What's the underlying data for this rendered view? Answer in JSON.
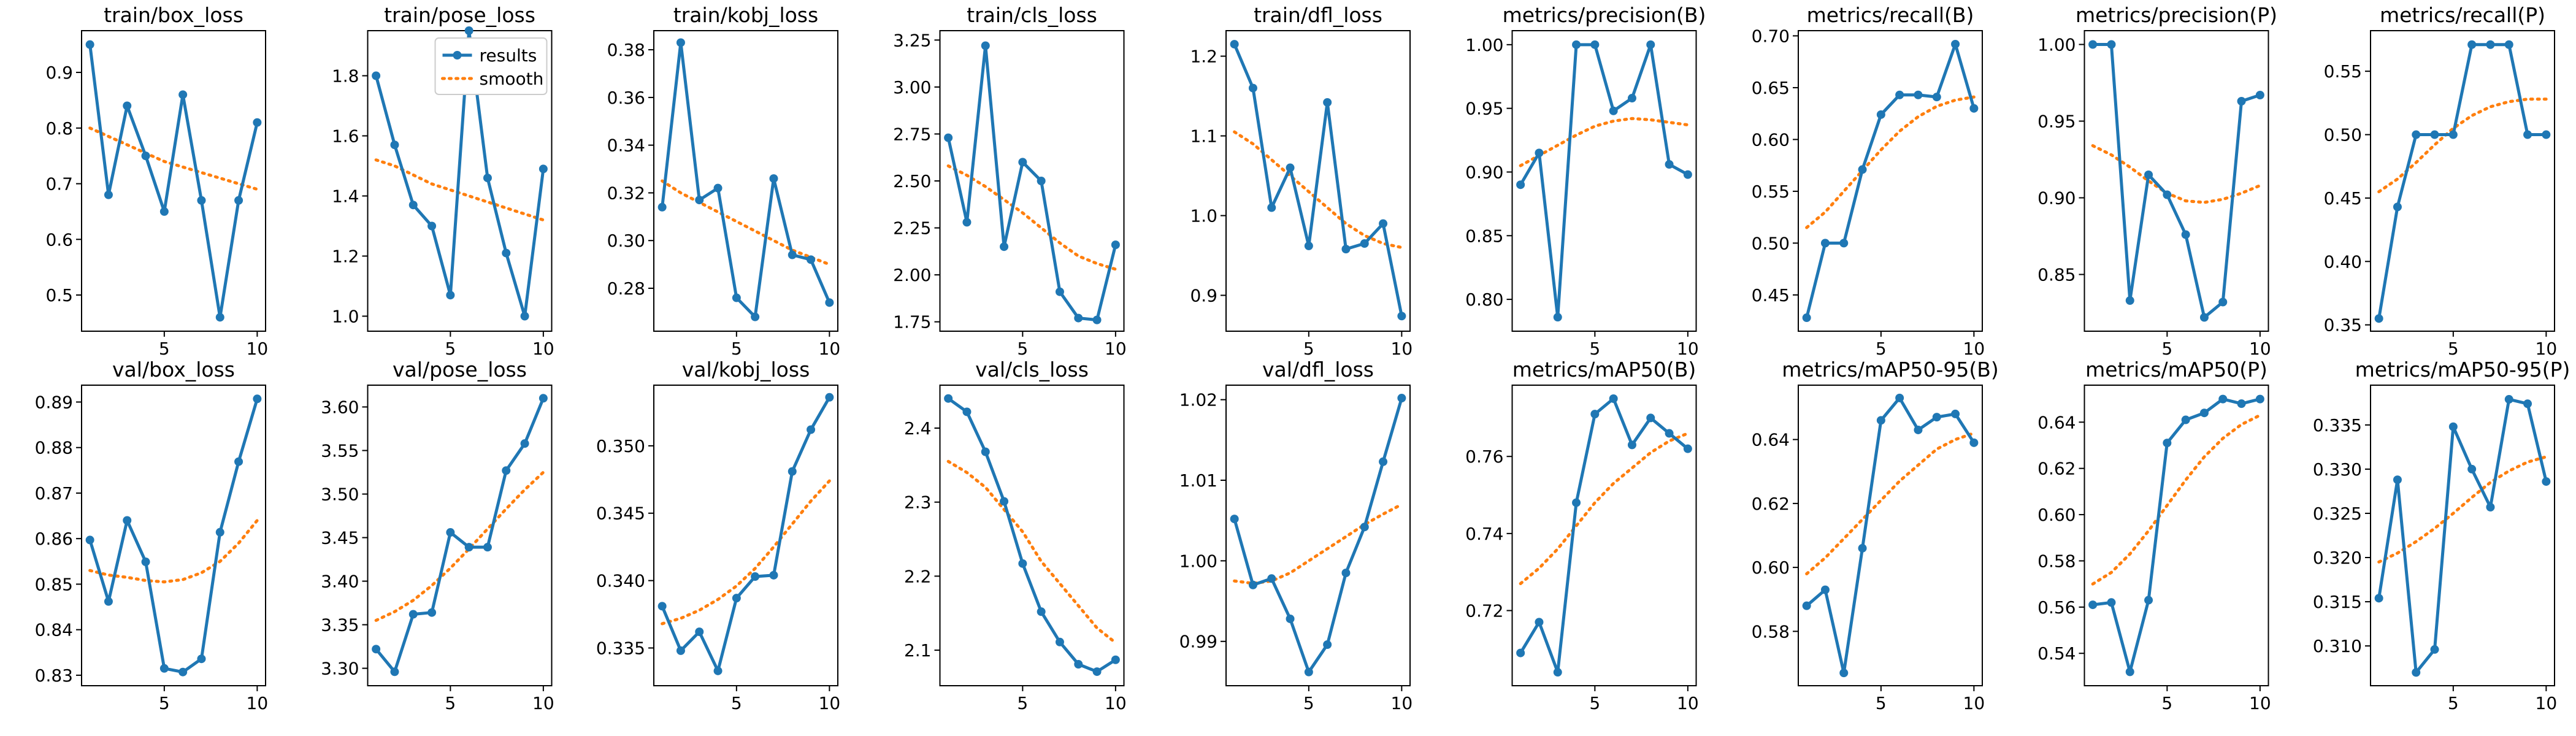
{
  "colors": {
    "results": "#1f77b4",
    "smooth": "#ff7f0e"
  },
  "legend": {
    "results": "results",
    "smooth": "smooth",
    "placement": "upper-right of train/pose_loss panel"
  },
  "chart_data": [
    {
      "type": "line",
      "title": "train/box_loss",
      "x": [
        1,
        2,
        3,
        4,
        5,
        6,
        7,
        8,
        9,
        10
      ],
      "series": [
        {
          "name": "results",
          "values": [
            0.95,
            0.68,
            0.84,
            0.75,
            0.65,
            0.86,
            0.67,
            0.46,
            0.67,
            0.81
          ]
        },
        {
          "name": "smooth",
          "values": [
            0.8,
            0.785,
            0.77,
            0.755,
            0.74,
            0.73,
            0.72,
            0.71,
            0.7,
            0.69
          ]
        }
      ],
      "xticks": [
        5,
        10
      ],
      "yticks": [
        0.5,
        0.6,
        0.7,
        0.8,
        0.9
      ],
      "xlim": [
        0.55,
        10.45
      ],
      "ylim": [
        0.435,
        0.975
      ]
    },
    {
      "type": "line",
      "title": "train/pose_loss",
      "x": [
        1,
        2,
        3,
        4,
        5,
        6,
        7,
        8,
        9,
        10
      ],
      "series": [
        {
          "name": "results",
          "values": [
            1.8,
            1.57,
            1.37,
            1.3,
            1.07,
            1.95,
            1.46,
            1.21,
            1.0,
            1.49
          ]
        },
        {
          "name": "smooth",
          "values": [
            1.52,
            1.5,
            1.47,
            1.44,
            1.42,
            1.4,
            1.38,
            1.36,
            1.34,
            1.32
          ]
        }
      ],
      "xticks": [
        5,
        10
      ],
      "yticks": [
        1.0,
        1.2,
        1.4,
        1.6,
        1.8
      ],
      "xlim": [
        0.55,
        10.45
      ],
      "ylim": [
        0.95,
        1.95
      ],
      "legend": true
    },
    {
      "type": "line",
      "title": "train/kobj_loss",
      "x": [
        1,
        2,
        3,
        4,
        5,
        6,
        7,
        8,
        9,
        10
      ],
      "series": [
        {
          "name": "results",
          "values": [
            0.314,
            0.383,
            0.317,
            0.322,
            0.276,
            0.268,
            0.326,
            0.294,
            0.292,
            0.274
          ]
        },
        {
          "name": "smooth",
          "values": [
            0.325,
            0.32,
            0.316,
            0.312,
            0.308,
            0.304,
            0.3,
            0.296,
            0.293,
            0.29
          ]
        }
      ],
      "xticks": [
        5,
        10
      ],
      "yticks": [
        0.28,
        0.3,
        0.32,
        0.34,
        0.36,
        0.38
      ],
      "xlim": [
        0.55,
        10.45
      ],
      "ylim": [
        0.262,
        0.388
      ]
    },
    {
      "type": "line",
      "title": "train/cls_loss",
      "x": [
        1,
        2,
        3,
        4,
        5,
        6,
        7,
        8,
        9,
        10
      ],
      "series": [
        {
          "name": "results",
          "values": [
            2.73,
            2.28,
            3.22,
            2.15,
            2.6,
            2.5,
            1.91,
            1.77,
            1.76,
            2.16
          ]
        },
        {
          "name": "smooth",
          "values": [
            2.58,
            2.53,
            2.47,
            2.4,
            2.33,
            2.25,
            2.17,
            2.1,
            2.06,
            2.03
          ]
        }
      ],
      "xticks": [
        5,
        10
      ],
      "yticks": [
        1.75,
        2.0,
        2.25,
        2.5,
        2.75,
        3.0,
        3.25
      ],
      "xlim": [
        0.55,
        10.45
      ],
      "ylim": [
        1.7,
        3.3
      ]
    },
    {
      "type": "line",
      "title": "train/dfl_loss",
      "x": [
        1,
        2,
        3,
        4,
        5,
        6,
        7,
        8,
        9,
        10
      ],
      "series": [
        {
          "name": "results",
          "values": [
            1.215,
            1.16,
            1.01,
            1.06,
            0.962,
            1.142,
            0.958,
            0.965,
            0.99,
            0.874
          ]
        },
        {
          "name": "smooth",
          "values": [
            1.105,
            1.09,
            1.07,
            1.05,
            1.03,
            1.01,
            0.99,
            0.975,
            0.965,
            0.96
          ]
        }
      ],
      "xticks": [
        5,
        10
      ],
      "yticks": [
        0.9,
        1.0,
        1.1,
        1.2
      ],
      "xlim": [
        0.55,
        10.45
      ],
      "ylim": [
        0.855,
        1.232
      ]
    },
    {
      "type": "line",
      "title": "metrics/precision(B)",
      "x": [
        1,
        2,
        3,
        4,
        5,
        6,
        7,
        8,
        9,
        10
      ],
      "series": [
        {
          "name": "results",
          "values": [
            0.89,
            0.915,
            0.786,
            1.0,
            1.0,
            0.948,
            0.958,
            1.0,
            0.906,
            0.898
          ]
        },
        {
          "name": "smooth",
          "values": [
            0.905,
            0.913,
            0.921,
            0.929,
            0.936,
            0.94,
            0.942,
            0.941,
            0.939,
            0.937
          ]
        }
      ],
      "xticks": [
        5,
        10
      ],
      "yticks": [
        0.8,
        0.85,
        0.9,
        0.95,
        1.0
      ],
      "xlim": [
        0.55,
        10.45
      ],
      "ylim": [
        0.775,
        1.011
      ]
    },
    {
      "type": "line",
      "title": "metrics/recall(B)",
      "x": [
        1,
        2,
        3,
        4,
        5,
        6,
        7,
        8,
        9,
        10
      ],
      "series": [
        {
          "name": "results",
          "values": [
            0.428,
            0.5,
            0.5,
            0.571,
            0.624,
            0.643,
            0.643,
            0.641,
            0.692,
            0.63
          ]
        },
        {
          "name": "smooth",
          "values": [
            0.515,
            0.53,
            0.55,
            0.57,
            0.59,
            0.608,
            0.622,
            0.632,
            0.638,
            0.641
          ]
        }
      ],
      "xticks": [
        5,
        10
      ],
      "yticks": [
        0.45,
        0.5,
        0.55,
        0.6,
        0.65,
        0.7
      ],
      "xlim": [
        0.55,
        10.45
      ],
      "ylim": [
        0.415,
        0.705
      ]
    },
    {
      "type": "line",
      "title": "metrics/precision(P)",
      "x": [
        1,
        2,
        3,
        4,
        5,
        6,
        7,
        8,
        9,
        10
      ],
      "series": [
        {
          "name": "results",
          "values": [
            1.0,
            1.0,
            0.833,
            0.915,
            0.902,
            0.876,
            0.822,
            0.832,
            0.963,
            0.967
          ]
        },
        {
          "name": "smooth",
          "values": [
            0.934,
            0.928,
            0.92,
            0.911,
            0.903,
            0.898,
            0.897,
            0.899,
            0.903,
            0.908
          ]
        }
      ],
      "xticks": [
        5,
        10
      ],
      "yticks": [
        0.85,
        0.9,
        0.95,
        1.0
      ],
      "xlim": [
        0.55,
        10.45
      ],
      "ylim": [
        0.813,
        1.009
      ]
    },
    {
      "type": "line",
      "title": "metrics/recall(P)",
      "x": [
        1,
        2,
        3,
        4,
        5,
        6,
        7,
        8,
        9,
        10
      ],
      "series": [
        {
          "name": "results",
          "values": [
            0.355,
            0.443,
            0.5,
            0.5,
            0.5,
            0.571,
            0.571,
            0.571,
            0.5,
            0.5
          ]
        },
        {
          "name": "smooth",
          "values": [
            0.455,
            0.465,
            0.478,
            0.492,
            0.505,
            0.515,
            0.522,
            0.526,
            0.528,
            0.528
          ]
        }
      ],
      "xticks": [
        5,
        10
      ],
      "yticks": [
        0.35,
        0.4,
        0.45,
        0.5,
        0.55
      ],
      "xlim": [
        0.55,
        10.45
      ],
      "ylim": [
        0.345,
        0.582
      ]
    },
    {
      "type": "line",
      "title": "val/box_loss",
      "x": [
        1,
        2,
        3,
        4,
        5,
        6,
        7,
        8,
        9,
        10
      ],
      "series": [
        {
          "name": "results",
          "values": [
            0.8597,
            0.8462,
            0.864,
            0.8549,
            0.8315,
            0.8307,
            0.8336,
            0.8614,
            0.8769,
            0.8907
          ]
        },
        {
          "name": "smooth",
          "values": [
            0.853,
            0.852,
            0.8515,
            0.8508,
            0.8505,
            0.851,
            0.8525,
            0.855,
            0.859,
            0.864
          ]
        }
      ],
      "xticks": [
        5,
        10
      ],
      "yticks": [
        0.83,
        0.84,
        0.85,
        0.86,
        0.87,
        0.88,
        0.89
      ],
      "xlim": [
        0.55,
        10.45
      ],
      "ylim": [
        0.8277,
        0.8937
      ]
    },
    {
      "type": "line",
      "title": "val/pose_loss",
      "x": [
        1,
        2,
        3,
        4,
        5,
        6,
        7,
        8,
        9,
        10
      ],
      "series": [
        {
          "name": "results",
          "values": [
            3.322,
            3.296,
            3.362,
            3.364,
            3.456,
            3.439,
            3.439,
            3.527,
            3.558,
            3.61
          ]
        },
        {
          "name": "smooth",
          "values": [
            3.355,
            3.365,
            3.378,
            3.395,
            3.415,
            3.437,
            3.46,
            3.483,
            3.505,
            3.525
          ]
        }
      ],
      "xticks": [
        5,
        10
      ],
      "yticks": [
        3.3,
        3.35,
        3.4,
        3.45,
        3.5,
        3.55,
        3.6
      ],
      "xlim": [
        0.55,
        10.45
      ],
      "ylim": [
        3.28,
        3.625
      ]
    },
    {
      "type": "line",
      "title": "val/kobj_loss",
      "x": [
        1,
        2,
        3,
        4,
        5,
        6,
        7,
        8,
        9,
        10
      ],
      "series": [
        {
          "name": "results",
          "values": [
            0.3381,
            0.3348,
            0.3362,
            0.3333,
            0.3387,
            0.3403,
            0.3404,
            0.3481,
            0.3512,
            0.3536
          ]
        },
        {
          "name": "smooth",
          "values": [
            0.3368,
            0.3372,
            0.3378,
            0.3386,
            0.3396,
            0.3409,
            0.3425,
            0.3442,
            0.3459,
            0.3474
          ]
        }
      ],
      "xticks": [
        5,
        10
      ],
      "yticks": [
        0.335,
        0.34,
        0.345,
        0.35
      ],
      "xlim": [
        0.55,
        10.45
      ],
      "ylim": [
        0.3322,
        0.3545
      ]
    },
    {
      "type": "line",
      "title": "val/cls_loss",
      "x": [
        1,
        2,
        3,
        4,
        5,
        6,
        7,
        8,
        9,
        10
      ],
      "series": [
        {
          "name": "results",
          "values": [
            2.44,
            2.422,
            2.368,
            2.301,
            2.217,
            2.152,
            2.111,
            2.081,
            2.071,
            2.087
          ]
        },
        {
          "name": "smooth",
          "values": [
            2.355,
            2.34,
            2.32,
            2.29,
            2.26,
            2.22,
            2.19,
            2.16,
            2.13,
            2.11
          ]
        }
      ],
      "xticks": [
        5,
        10
      ],
      "yticks": [
        2.1,
        2.2,
        2.3,
        2.4
      ],
      "xlim": [
        0.55,
        10.45
      ],
      "ylim": [
        2.052,
        2.458
      ]
    },
    {
      "type": "line",
      "title": "val/dfl_loss",
      "x": [
        1,
        2,
        3,
        4,
        5,
        6,
        7,
        8,
        9,
        10
      ],
      "series": [
        {
          "name": "results",
          "values": [
            1.0052,
            0.997,
            0.9978,
            0.9928,
            0.9862,
            0.9896,
            0.9985,
            1.0042,
            1.0123,
            1.0202
          ]
        },
        {
          "name": "smooth",
          "values": [
            0.9975,
            0.9972,
            0.9975,
            0.9985,
            1.0,
            1.0015,
            1.003,
            1.0045,
            1.0058,
            1.007
          ]
        }
      ],
      "xticks": [
        5,
        10
      ],
      "yticks": [
        0.99,
        1.0,
        1.01,
        1.02
      ],
      "xlim": [
        0.55,
        10.45
      ],
      "ylim": [
        0.9845,
        1.0218
      ]
    },
    {
      "type": "line",
      "title": "metrics/mAP50(B)",
      "x": [
        1,
        2,
        3,
        4,
        5,
        6,
        7,
        8,
        9,
        10
      ],
      "series": [
        {
          "name": "results",
          "values": [
            0.709,
            0.717,
            0.704,
            0.748,
            0.771,
            0.775,
            0.763,
            0.77,
            0.766,
            0.762
          ]
        },
        {
          "name": "smooth",
          "values": [
            0.727,
            0.731,
            0.736,
            0.742,
            0.748,
            0.753,
            0.757,
            0.761,
            0.764,
            0.766
          ]
        }
      ],
      "xticks": [
        5,
        10
      ],
      "yticks": [
        0.72,
        0.74,
        0.76
      ],
      "xlim": [
        0.55,
        10.45
      ],
      "ylim": [
        0.7005,
        0.7785
      ]
    },
    {
      "type": "line",
      "title": "metrics/mAP50-95(B)",
      "x": [
        1,
        2,
        3,
        4,
        5,
        6,
        7,
        8,
        9,
        10
      ],
      "series": [
        {
          "name": "results",
          "values": [
            0.588,
            0.593,
            0.567,
            0.606,
            0.646,
            0.653,
            0.643,
            0.647,
            0.648,
            0.639
          ]
        },
        {
          "name": "smooth",
          "values": [
            0.598,
            0.603,
            0.609,
            0.615,
            0.621,
            0.627,
            0.632,
            0.637,
            0.64,
            0.642
          ]
        }
      ],
      "xticks": [
        5,
        10
      ],
      "yticks": [
        0.58,
        0.6,
        0.62,
        0.64
      ],
      "xlim": [
        0.55,
        10.45
      ],
      "ylim": [
        0.563,
        0.657
      ]
    },
    {
      "type": "line",
      "title": "metrics/mAP50(P)",
      "x": [
        1,
        2,
        3,
        4,
        5,
        6,
        7,
        8,
        9,
        10
      ],
      "series": [
        {
          "name": "results",
          "values": [
            0.561,
            0.562,
            0.532,
            0.563,
            0.631,
            0.641,
            0.644,
            0.65,
            0.648,
            0.65
          ]
        },
        {
          "name": "smooth",
          "values": [
            0.57,
            0.575,
            0.583,
            0.593,
            0.604,
            0.615,
            0.625,
            0.633,
            0.639,
            0.643
          ]
        }
      ],
      "xticks": [
        5,
        10
      ],
      "yticks": [
        0.54,
        0.56,
        0.58,
        0.6,
        0.62,
        0.64
      ],
      "xlim": [
        0.55,
        10.45
      ],
      "ylim": [
        0.526,
        0.656
      ]
    },
    {
      "type": "line",
      "title": "metrics/mAP50-95(P)",
      "x": [
        1,
        2,
        3,
        4,
        5,
        6,
        7,
        8,
        9,
        10
      ],
      "series": [
        {
          "name": "results",
          "values": [
            0.3154,
            0.3288,
            0.307,
            0.3096,
            0.3348,
            0.33,
            0.3257,
            0.3379,
            0.3374,
            0.3286
          ]
        },
        {
          "name": "smooth",
          "values": [
            0.3195,
            0.3205,
            0.3218,
            0.3233,
            0.325,
            0.3268,
            0.3285,
            0.3298,
            0.3308,
            0.3314
          ]
        }
      ],
      "xticks": [
        5,
        10
      ],
      "yticks": [
        0.31,
        0.315,
        0.32,
        0.325,
        0.33,
        0.335
      ],
      "xlim": [
        0.55,
        10.45
      ],
      "ylim": [
        0.3055,
        0.3395
      ]
    }
  ]
}
